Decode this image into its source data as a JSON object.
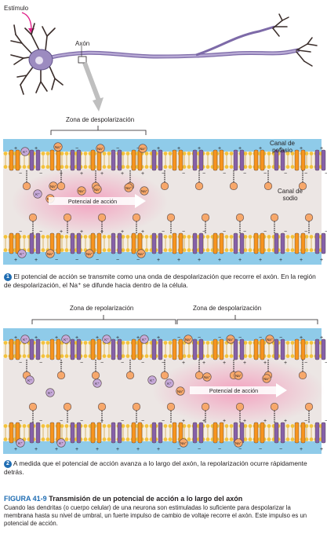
{
  "colors": {
    "fluid_blue": "#8fcbe9",
    "cytoplasm": "#ece6e4",
    "depol_pink": "#f3a3c0",
    "na_channel": "#f7941d",
    "k_channel": "#8560a8",
    "na_ion": "#f7a86b",
    "k_ion": "#c6a9d9",
    "membrane_head": "#f3c23b",
    "neuron": "#9c8bc0",
    "caption_blue": "#1f6db3"
  },
  "neuron_labels": {
    "stimulus": "Estímulo",
    "axon": "Axón"
  },
  "panel1": {
    "zone_label": "Zona de despolarización",
    "k_channel_label": "Canal de potasio",
    "na_channel_label": "Canal de sodio",
    "arrow_label": "Potencial de acción",
    "caption_number": "1",
    "caption": "El potencial de acción se transmite como una onda de despolarización que recorre el axón. En la región de despolarización, el Na⁺ se difunde hacia dentro de la célula."
  },
  "panel2": {
    "zone_left_label": "Zona de repolarización",
    "zone_right_label": "Zona de despolarización",
    "arrow_label": "Potencial de acción",
    "caption_number": "2",
    "caption": "A medida que el potencial de acción avanza a lo largo del axón, la repolarización ocurre rápidamente detrás."
  },
  "ions": {
    "k": "K⁺",
    "na": "Na⁺"
  },
  "figure": {
    "number": "FIGURA 41-9",
    "title": "Transmisión de un potencial de acción a lo largo del axón",
    "caption": "Cuando las dendritas (o cuerpo celular) de una neurona son estimuladas lo suficiente para despolarizar la membrana hasta su nivel de umbral, un fuerte impulso de cambio de voltaje recorre el axón. Este impulso es un potencial de acción."
  }
}
